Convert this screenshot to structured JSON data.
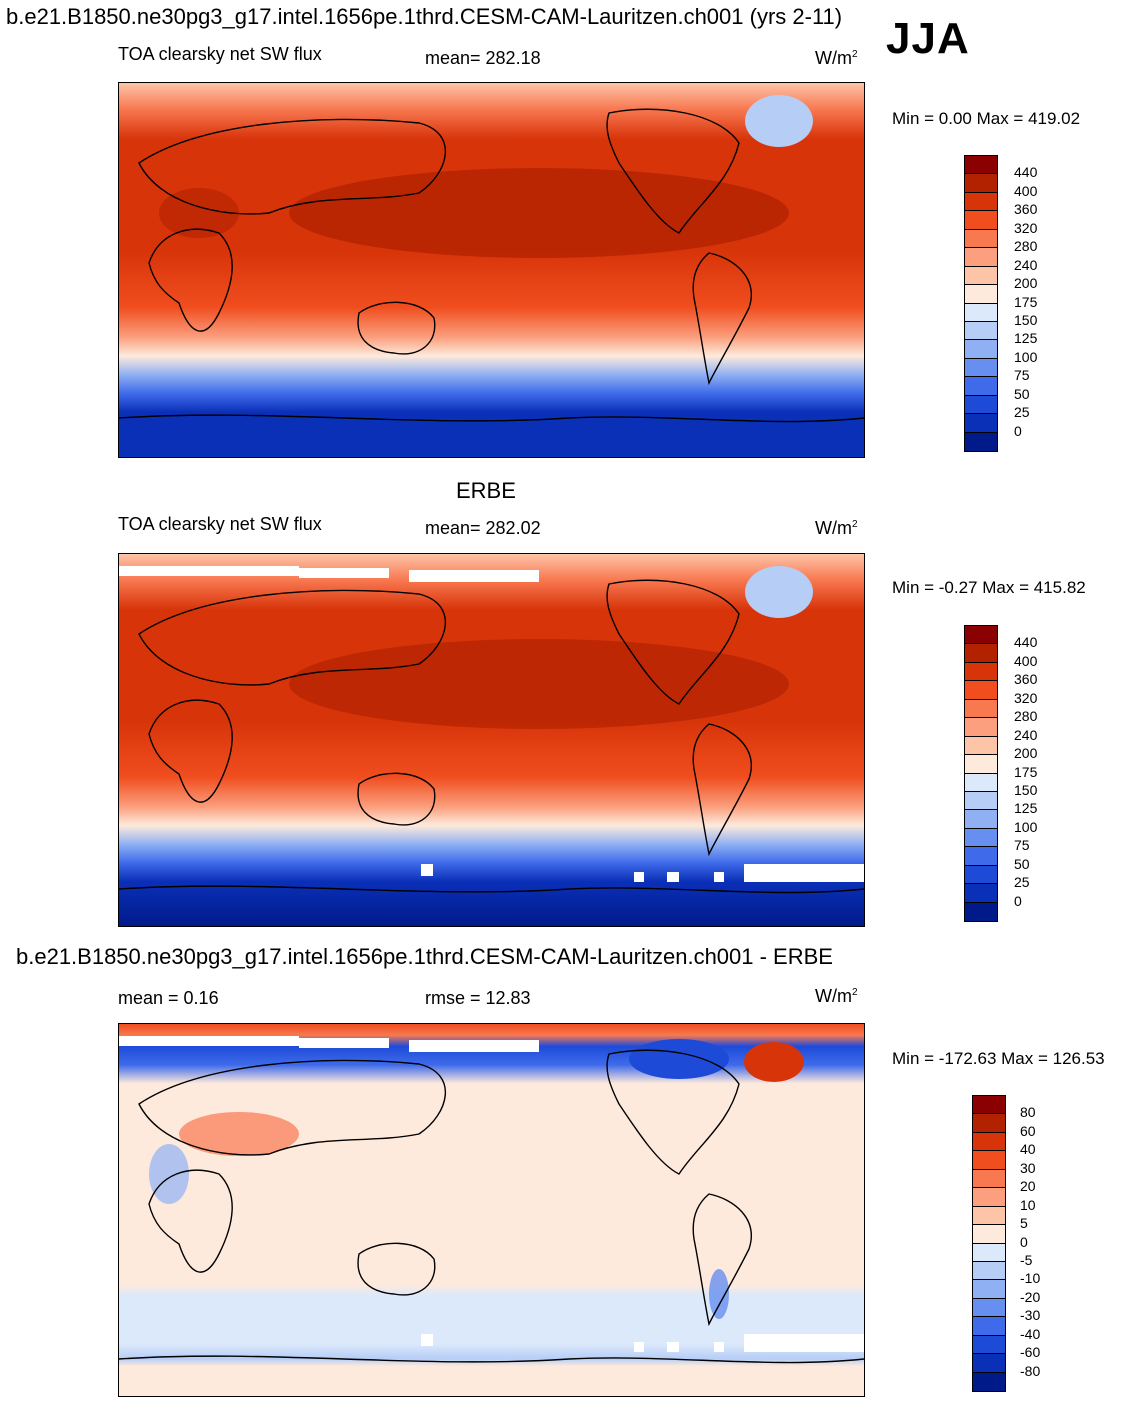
{
  "header": {
    "title": "b.e21.B1850.ne30pg3_g17.intel.1656pe.1thrd.CESM-CAM-Lauritzen.ch001 (yrs 2-11)",
    "season": "JJA"
  },
  "panel1": {
    "field": "TOA clearsky net SW flux",
    "mean": "mean= 282.18",
    "unit": "W/m",
    "unit_exp": "2",
    "minmax": "Min =   0.00 Max = 419.02"
  },
  "panel2": {
    "label": "ERBE",
    "field": "TOA clearsky net SW flux",
    "mean": "mean= 282.02",
    "unit": "W/m",
    "unit_exp": "2",
    "minmax": "Min =  -0.27 Max = 415.82"
  },
  "panel3": {
    "title": "b.e21.B1850.ne30pg3_g17.intel.1656pe.1thrd.CESM-CAM-Lauritzen.ch001 - ERBE",
    "mean": "mean =   0.16",
    "rmse": "rmse =  12.83",
    "unit": "W/m",
    "unit_exp": "2",
    "minmax": "Min = -172.63 Max = 126.53"
  },
  "colorbar_flux": {
    "labels": [
      "440",
      "400",
      "360",
      "320",
      "280",
      "240",
      "200",
      "175",
      "150",
      "125",
      "100",
      "75",
      "50",
      "25",
      "0"
    ],
    "colors": [
      "#8b0000",
      "#b22200",
      "#d8340a",
      "#f04e1f",
      "#f87850",
      "#fb9f7e",
      "#fdc4a8",
      "#feeadc",
      "#dce9fb",
      "#b6cdf6",
      "#8fb0f3",
      "#678ff0",
      "#3f6bea",
      "#1d4bd8",
      "#0b30b8",
      "#001a8a"
    ]
  },
  "colorbar_diff": {
    "labels": [
      "80",
      "60",
      "40",
      "30",
      "20",
      "10",
      "5",
      "0",
      "-5",
      "-10",
      "-20",
      "-30",
      "-40",
      "-60",
      "-80"
    ],
    "colors": [
      "#8b0000",
      "#b22200",
      "#d8340a",
      "#f04e1f",
      "#f87850",
      "#fb9f7e",
      "#fdc4a8",
      "#feeadc",
      "#dce9fb",
      "#b6cdf6",
      "#8fb0f3",
      "#678ff0",
      "#3f6bea",
      "#1d4bd8",
      "#0b30b8",
      "#001a8a"
    ]
  }
}
